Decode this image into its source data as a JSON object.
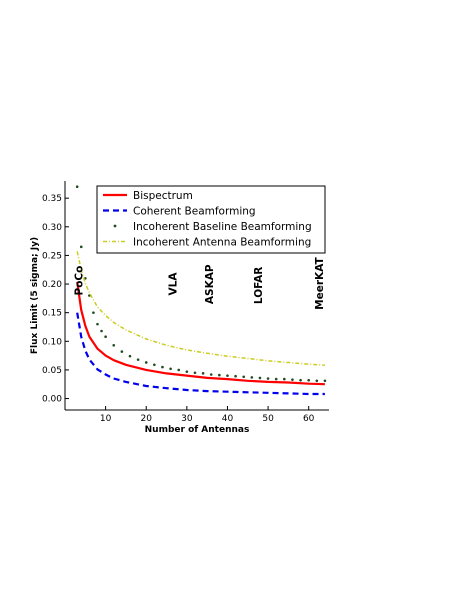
{
  "chart_data": {
    "type": "line",
    "title": "",
    "xlabel": "Number of Antennas",
    "ylabel": "Flux Limit (5 sigma; Jy)",
    "xlim": [
      0,
      65
    ],
    "ylim": [
      -0.02,
      0.38
    ],
    "xticks": [
      10,
      20,
      30,
      40,
      50,
      60
    ],
    "yticks": [
      0.0,
      0.05,
      0.1,
      0.15,
      0.2,
      0.25,
      0.3,
      0.35
    ],
    "grid": false,
    "legend_position": "top-right",
    "colors": {
      "bispectrum": "#ff0000",
      "coherent": "#0000ee",
      "incoherent_baseline": "#1f4d1f",
      "incoherent_antenna": "#cccc22"
    },
    "series": [
      {
        "name": "Bispectrum",
        "style": "solid-line",
        "color": "#ff0000",
        "x": [
          3,
          4,
          5,
          6,
          8,
          10,
          12,
          15,
          20,
          25,
          30,
          35,
          40,
          45,
          50,
          55,
          60,
          64
        ],
        "values": [
          0.204,
          0.155,
          0.127,
          0.108,
          0.087,
          0.075,
          0.067,
          0.059,
          0.05,
          0.044,
          0.04,
          0.036,
          0.034,
          0.031,
          0.029,
          0.028,
          0.026,
          0.025
        ]
      },
      {
        "name": "Coherent Beamforming",
        "style": "dashed-line",
        "color": "#0000ee",
        "x": [
          3,
          4,
          5,
          6,
          8,
          10,
          12,
          15,
          20,
          25,
          30,
          35,
          40,
          45,
          50,
          55,
          60,
          64
        ],
        "values": [
          0.15,
          0.108,
          0.084,
          0.068,
          0.051,
          0.042,
          0.035,
          0.029,
          0.022,
          0.018,
          0.015,
          0.013,
          0.012,
          0.011,
          0.01,
          0.009,
          0.008,
          0.008
        ]
      },
      {
        "name": "Incoherent Baseline Beamforming",
        "style": "dotted",
        "color": "#1f4d1f",
        "x": [
          3,
          4,
          5,
          6,
          7,
          8,
          9,
          10,
          12,
          14,
          16,
          18,
          20,
          22,
          24,
          26,
          28,
          30,
          32,
          34,
          36,
          38,
          40,
          42,
          44,
          46,
          48,
          50,
          52,
          54,
          56,
          58,
          60,
          62,
          64
        ],
        "values": [
          0.37,
          0.265,
          0.21,
          0.18,
          0.15,
          0.13,
          0.118,
          0.108,
          0.093,
          0.082,
          0.074,
          0.068,
          0.063,
          0.059,
          0.055,
          0.052,
          0.05,
          0.047,
          0.045,
          0.044,
          0.042,
          0.041,
          0.04,
          0.039,
          0.038,
          0.037,
          0.036,
          0.035,
          0.034,
          0.034,
          0.033,
          0.032,
          0.032,
          0.031,
          0.031
        ]
      },
      {
        "name": "Incoherent Antenna Beamforming",
        "style": "dash-dot-line",
        "color": "#cccc22",
        "x": [
          3,
          4,
          5,
          6,
          8,
          10,
          12,
          15,
          20,
          25,
          30,
          35,
          40,
          45,
          50,
          55,
          60,
          64
        ],
        "values": [
          0.257,
          0.225,
          0.201,
          0.185,
          0.16,
          0.145,
          0.133,
          0.12,
          0.104,
          0.093,
          0.085,
          0.079,
          0.074,
          0.07,
          0.066,
          0.063,
          0.06,
          0.058
        ]
      }
    ],
    "annotations": [
      {
        "text": "PoCo",
        "x": 4.3,
        "y": 0.18
      },
      {
        "text": "VLA",
        "x": 27.5,
        "y": 0.18
      },
      {
        "text": "ASKAP",
        "x": 36.5,
        "y": 0.165
      },
      {
        "text": "LOFAR",
        "x": 48.5,
        "y": 0.165
      },
      {
        "text": "MeerKAT",
        "x": 63.5,
        "y": 0.155
      }
    ]
  }
}
